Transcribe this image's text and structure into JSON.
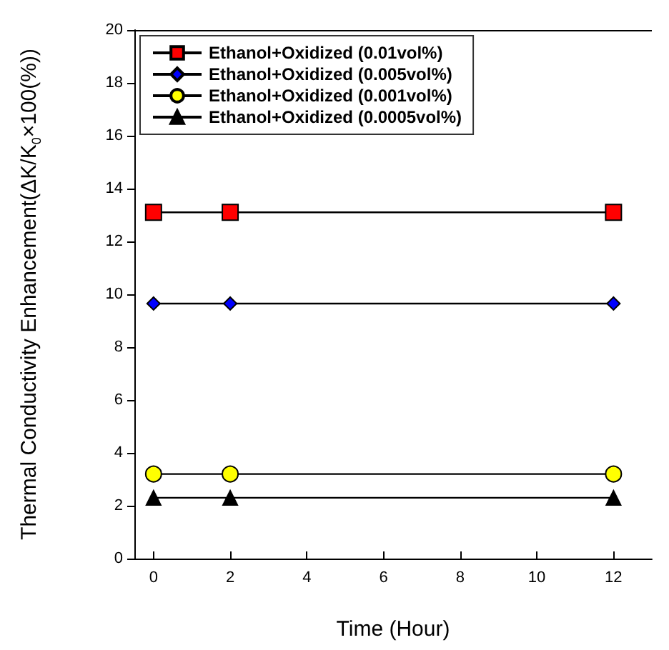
{
  "chart_data": {
    "type": "line",
    "xlabel": "Time (Hour)",
    "ylabel": "Thermal Conductivity Enhancement(ΔK/K$_{0}$×100(%))",
    "x": [
      0,
      2,
      12
    ],
    "series": [
      {
        "name": "Ethanol+Oxidized (0.01vol%)",
        "color": "#ff0000",
        "marker": "square",
        "values": [
          13.1,
          13.1,
          13.1
        ]
      },
      {
        "name": "Ethanol+Oxidized (0.005vol%)",
        "color": "#0000ff",
        "marker": "diamond",
        "values": [
          9.65,
          9.65,
          9.65
        ]
      },
      {
        "name": "Ethanol+Oxidized (0.001vol%)",
        "color": "#ffff00",
        "marker": "circle",
        "values": [
          3.2,
          3.2,
          3.2
        ]
      },
      {
        "name": "Ethanol+Oxidized (0.0005vol%)",
        "color": "#000000",
        "marker": "triangle",
        "values": [
          2.3,
          2.3,
          2.3
        ]
      }
    ],
    "xlim": [
      -0.5,
      13
    ],
    "xticks": [
      0,
      2,
      4,
      6,
      8,
      10,
      12
    ],
    "ylim": [
      0,
      20
    ],
    "yticks": [
      0,
      2,
      4,
      6,
      8,
      10,
      12,
      14,
      16,
      18,
      20
    ],
    "legend": "top left",
    "grid": false,
    "line_style": "solid"
  }
}
